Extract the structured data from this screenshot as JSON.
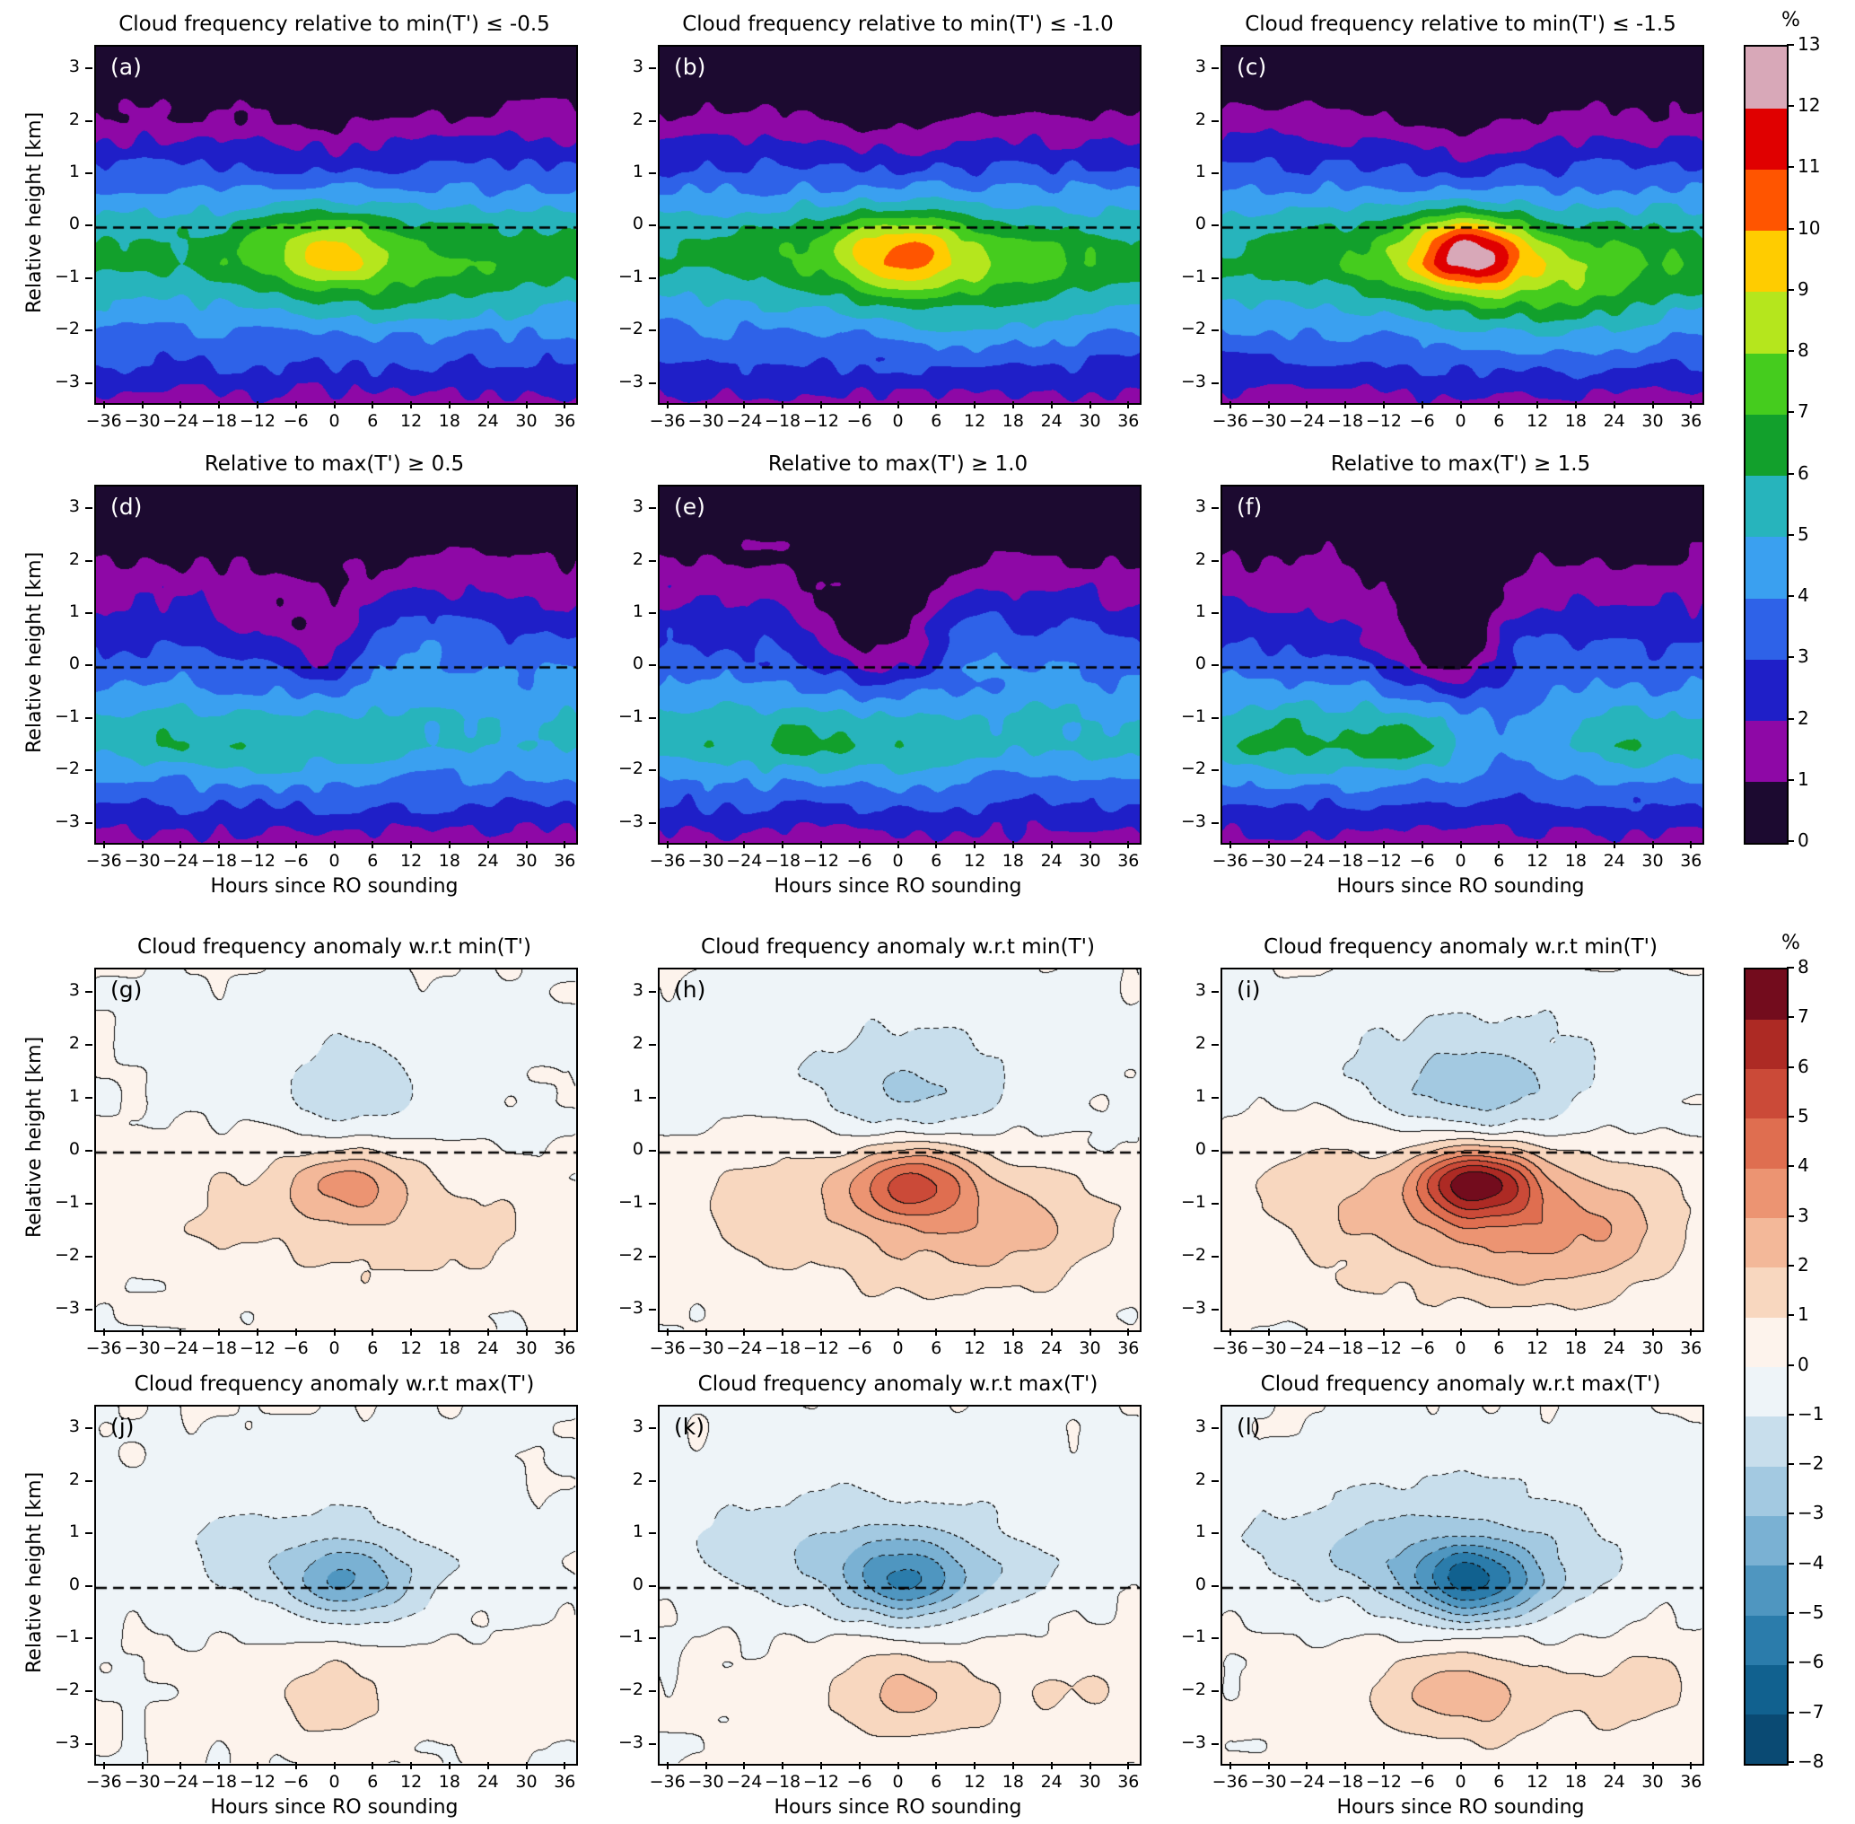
{
  "figure": {
    "xlabel": "Hours since RO sounding",
    "ylabel": "Relative height [km]",
    "x_ticks": [
      -36,
      -30,
      -24,
      -18,
      -12,
      -6,
      0,
      6,
      12,
      18,
      24,
      30,
      36
    ],
    "x_tick_labels": [
      "−36",
      "−30",
      "−24",
      "−18",
      "−12",
      "−6",
      "0",
      "6",
      "12",
      "18",
      "24",
      "30",
      "36"
    ],
    "y_ticks": [
      -3,
      -2,
      -1,
      0,
      1,
      2,
      3
    ],
    "y_tick_labels": [
      "−3",
      "−2",
      "−1",
      "0",
      "1",
      "2",
      "3"
    ]
  },
  "chart_data": {
    "type": "heatmap",
    "x_range": [
      -36,
      36
    ],
    "y_range": [
      -3.3,
      3.4
    ],
    "x_axis": "Hours since RO sounding",
    "y_axis": "Relative height [km]",
    "zero_height_line": "dashed horizontal line at relative height 0 in every panel",
    "backgrounds": {
      "B1": [
        [
          -3.45,
          1.5
        ],
        [
          -3.0,
          2.3
        ],
        [
          -2.5,
          3.1
        ],
        [
          -2.0,
          3.9
        ],
        [
          -1.5,
          4.8
        ],
        [
          -1.0,
          5.8
        ],
        [
          -0.7,
          6.2
        ],
        [
          -0.3,
          6.0
        ],
        [
          0.0,
          5.5
        ],
        [
          0.5,
          4.4
        ],
        [
          1.0,
          3.3
        ],
        [
          1.5,
          2.3
        ],
        [
          2.0,
          1.4
        ],
        [
          2.4,
          0.7
        ],
        [
          2.8,
          0.25
        ],
        [
          3.2,
          0.05
        ],
        [
          3.5,
          0.0
        ]
      ],
      "B2": [
        [
          -3.45,
          1.4
        ],
        [
          -3.0,
          2.2
        ],
        [
          -2.5,
          3.2
        ],
        [
          -2.0,
          4.2
        ],
        [
          -1.5,
          5.2
        ],
        [
          -1.0,
          5.0
        ],
        [
          -0.5,
          4.2
        ],
        [
          0.0,
          3.5
        ],
        [
          0.5,
          2.9
        ],
        [
          1.0,
          2.3
        ],
        [
          1.5,
          1.7
        ],
        [
          2.0,
          1.05
        ],
        [
          2.5,
          0.5
        ],
        [
          3.0,
          0.18
        ],
        [
          3.5,
          0.0
        ]
      ]
    },
    "panels": [
      {
        "id": "a",
        "label": "(a)",
        "title": "Cloud frequency relative to min(T') ≤ -0.5",
        "cmap": "freq",
        "bg": "B1",
        "seed": 11,
        "noise": 0.45,
        "gaussians": [
          {
            "t": 0,
            "h": -0.45,
            "st": 7,
            "sh": 0.55,
            "a": 2.4
          },
          {
            "t": 14,
            "h": -1.0,
            "st": 13,
            "sh": 0.8,
            "a": 1.0
          },
          {
            "t": -10,
            "h": -0.35,
            "st": 9,
            "sh": 0.7,
            "a": 0.7
          },
          {
            "t": 0,
            "h": 1.9,
            "st": 8,
            "sh": 0.7,
            "a": -0.5
          }
        ]
      },
      {
        "id": "b",
        "label": "(b)",
        "title": "Cloud frequency relative to min(T') ≤ -1.0",
        "cmap": "freq",
        "bg": "B1",
        "seed": 12,
        "noise": 0.45,
        "gaussians": [
          {
            "t": 1,
            "h": -0.5,
            "st": 6.5,
            "sh": 0.55,
            "a": 3.4
          },
          {
            "t": 14,
            "h": -1.0,
            "st": 13,
            "sh": 0.8,
            "a": 1.5
          },
          {
            "t": -10,
            "h": -0.35,
            "st": 9,
            "sh": 0.7,
            "a": 0.9
          },
          {
            "t": 0,
            "h": 1.9,
            "st": 8,
            "sh": 0.7,
            "a": -0.6
          }
        ]
      },
      {
        "id": "c",
        "label": "(c)",
        "title": "Cloud frequency relative to min(T') ≤ -1.5",
        "cmap": "freq",
        "bg": "B1",
        "seed": 13,
        "noise": 0.45,
        "gaussians": [
          {
            "t": 1,
            "h": -0.5,
            "st": 6,
            "sh": 0.5,
            "a": 5.2
          },
          {
            "t": 14,
            "h": -1.1,
            "st": 13,
            "sh": 0.8,
            "a": 2.2
          },
          {
            "t": -10,
            "h": -0.4,
            "st": 9,
            "sh": 0.7,
            "a": 1.0
          },
          {
            "t": 0,
            "h": 1.9,
            "st": 8,
            "sh": 0.7,
            "a": -0.7
          }
        ]
      },
      {
        "id": "d",
        "label": "(d)",
        "title": "Relative to max(T') ≥ 0.5",
        "cmap": "freq",
        "bg": "B2",
        "seed": 21,
        "noise": 0.45,
        "gaussians": [
          {
            "t": -2,
            "h": 0.9,
            "st": 9,
            "sh": 0.8,
            "a": -1.2
          },
          {
            "t": -2,
            "h": 0.25,
            "st": 4,
            "sh": 0.5,
            "a": -0.7
          },
          {
            "t": 10,
            "h": 0.7,
            "st": 6,
            "sh": 0.6,
            "a": 1.2
          },
          {
            "t": 22,
            "h": 0.3,
            "st": 9,
            "sh": 0.8,
            "a": 0.5
          },
          {
            "t": -12,
            "h": -1.5,
            "st": 8,
            "sh": 0.55,
            "a": 0.8
          },
          {
            "t": -28,
            "h": -1.4,
            "st": 6,
            "sh": 0.5,
            "a": 0.5
          },
          {
            "t": 5,
            "h": -1.7,
            "st": 6,
            "sh": 0.5,
            "a": 0.5
          }
        ]
      },
      {
        "id": "e",
        "label": "(e)",
        "title": "Relative to max(T') ≥ 1.0",
        "cmap": "freq",
        "bg": "B2",
        "seed": 22,
        "noise": 0.45,
        "gaussians": [
          {
            "t": -2,
            "h": 0.9,
            "st": 9,
            "sh": 0.8,
            "a": -1.7
          },
          {
            "t": -2,
            "h": 0.25,
            "st": 4.5,
            "sh": 0.5,
            "a": -1.1
          },
          {
            "t": 10,
            "h": 0.7,
            "st": 5.5,
            "sh": 0.55,
            "a": 1.1
          },
          {
            "t": 22,
            "h": 0.3,
            "st": 9,
            "sh": 0.8,
            "a": 0.4
          },
          {
            "t": -12,
            "h": -1.5,
            "st": 8,
            "sh": 0.55,
            "a": 0.9
          },
          {
            "t": -28,
            "h": -1.4,
            "st": 6,
            "sh": 0.5,
            "a": 0.7
          },
          {
            "t": 5,
            "h": -1.7,
            "st": 6,
            "sh": 0.5,
            "a": 0.5
          }
        ]
      },
      {
        "id": "f",
        "label": "(f)",
        "title": "Relative to max(T') ≥ 1.5",
        "cmap": "freq",
        "bg": "B2",
        "seed": 23,
        "noise": 0.45,
        "gaussians": [
          {
            "t": -2,
            "h": 0.9,
            "st": 9,
            "sh": 0.8,
            "a": -2.2
          },
          {
            "t": -2,
            "h": 0.25,
            "st": 4.5,
            "sh": 0.5,
            "a": -1.5
          },
          {
            "t": 10,
            "h": 0.7,
            "st": 5,
            "sh": 0.55,
            "a": 1.0
          },
          {
            "t": -12,
            "h": -1.5,
            "st": 8,
            "sh": 0.55,
            "a": 1.3
          },
          {
            "t": -30,
            "h": -1.4,
            "st": 6,
            "sh": 0.5,
            "a": 1.1
          },
          {
            "t": 6,
            "h": -1.3,
            "st": 8,
            "sh": 0.7,
            "a": -0.8
          },
          {
            "t": 26,
            "h": -1.6,
            "st": 7,
            "sh": 0.5,
            "a": 0.6
          }
        ]
      },
      {
        "id": "g",
        "label": "(g)",
        "title": "Cloud frequency anomaly w.r.t min(T')",
        "cmap": "anom",
        "bg": null,
        "seed": 31,
        "noise": 0.3,
        "gaussians": [
          {
            "t": 2,
            "h": -0.55,
            "st": 6.5,
            "sh": 0.5,
            "a": 2.6
          },
          {
            "t": 16,
            "h": -1.2,
            "st": 13,
            "sh": 0.8,
            "a": 1.2
          },
          {
            "t": -16,
            "h": -0.9,
            "st": 14,
            "sh": 0.9,
            "a": 1.0
          },
          {
            "t": 8,
            "h": -2.2,
            "st": 20,
            "sh": 0.8,
            "a": 0.5
          },
          {
            "t": 2,
            "h": 1.1,
            "st": 10,
            "sh": 0.7,
            "a": -1.4
          },
          {
            "t": 0,
            "h": 2.0,
            "st": 26,
            "sh": 1.0,
            "a": -0.4
          }
        ]
      },
      {
        "id": "h",
        "label": "(h)",
        "title": "Cloud frequency anomaly w.r.t min(T')",
        "cmap": "anom",
        "bg": null,
        "seed": 32,
        "noise": 0.3,
        "gaussians": [
          {
            "t": 2,
            "h": -0.55,
            "st": 6.5,
            "sh": 0.5,
            "a": 4.2
          },
          {
            "t": 16,
            "h": -1.2,
            "st": 13,
            "sh": 0.8,
            "a": 2.0
          },
          {
            "t": -16,
            "h": -0.9,
            "st": 14,
            "sh": 0.9,
            "a": 1.4
          },
          {
            "t": 8,
            "h": -2.2,
            "st": 20,
            "sh": 0.8,
            "a": 0.9
          },
          {
            "t": 2,
            "h": 1.1,
            "st": 10,
            "sh": 0.7,
            "a": -1.8
          },
          {
            "t": 0,
            "h": 2.0,
            "st": 26,
            "sh": 1.0,
            "a": -0.7
          }
        ]
      },
      {
        "id": "i",
        "label": "(i)",
        "title": "Cloud frequency anomaly w.r.t min(T')",
        "cmap": "anom",
        "bg": null,
        "seed": 33,
        "noise": 0.3,
        "gaussians": [
          {
            "t": 2,
            "h": -0.55,
            "st": 6.5,
            "sh": 0.5,
            "a": 6.0
          },
          {
            "t": 16,
            "h": -1.2,
            "st": 13,
            "sh": 0.8,
            "a": 2.8
          },
          {
            "t": -16,
            "h": -0.9,
            "st": 14,
            "sh": 0.9,
            "a": 1.7
          },
          {
            "t": 8,
            "h": -2.2,
            "st": 20,
            "sh": 0.8,
            "a": 1.1
          },
          {
            "t": 2,
            "h": 1.1,
            "st": 10,
            "sh": 0.7,
            "a": -2.2
          },
          {
            "t": 0,
            "h": 2.0,
            "st": 26,
            "sh": 1.0,
            "a": -0.9
          }
        ]
      },
      {
        "id": "j",
        "label": "(j)",
        "title": "Cloud frequency anomaly w.r.t max(T')",
        "cmap": "anom",
        "bg": null,
        "seed": 41,
        "noise": 0.3,
        "gaussians": [
          {
            "t": 1,
            "h": 0.1,
            "st": 7,
            "sh": 0.55,
            "a": -3.2
          },
          {
            "t": -14,
            "h": 0.6,
            "st": 14,
            "sh": 0.7,
            "a": -1.1
          },
          {
            "t": 14,
            "h": 0.3,
            "st": 10,
            "sh": 0.6,
            "a": -0.8
          },
          {
            "t": 0,
            "h": 1.7,
            "st": 25,
            "sh": 1.0,
            "a": -0.4
          },
          {
            "t": 0,
            "h": -2.0,
            "st": 8,
            "sh": 0.6,
            "a": 1.3
          },
          {
            "t": 8,
            "h": -2.3,
            "st": 25,
            "sh": 0.8,
            "a": 0.25
          },
          {
            "t": 28,
            "h": -1.8,
            "st": 6,
            "sh": 0.5,
            "a": 0.6
          }
        ]
      },
      {
        "id": "k",
        "label": "(k)",
        "title": "Cloud frequency anomaly w.r.t max(T')",
        "cmap": "anom",
        "bg": null,
        "seed": 42,
        "noise": 0.3,
        "gaussians": [
          {
            "t": 1,
            "h": 0.1,
            "st": 7,
            "sh": 0.55,
            "a": -3.8
          },
          {
            "t": -14,
            "h": 0.6,
            "st": 14,
            "sh": 0.7,
            "a": -1.7
          },
          {
            "t": 14,
            "h": 0.3,
            "st": 10,
            "sh": 0.6,
            "a": -1.2
          },
          {
            "t": 0,
            "h": 1.7,
            "st": 25,
            "sh": 1.0,
            "a": -0.7
          },
          {
            "t": 0,
            "h": -2.0,
            "st": 8,
            "sh": 0.6,
            "a": 1.6
          },
          {
            "t": 8,
            "h": -2.3,
            "st": 25,
            "sh": 0.8,
            "a": 0.7
          },
          {
            "t": 28,
            "h": -1.8,
            "st": 6,
            "sh": 0.5,
            "a": 0.8
          }
        ]
      },
      {
        "id": "l",
        "label": "(l)",
        "title": "Cloud frequency anomaly w.r.t max(T')",
        "cmap": "anom",
        "bg": null,
        "seed": 43,
        "noise": 0.3,
        "gaussians": [
          {
            "t": 1,
            "h": 0.1,
            "st": 7,
            "sh": 0.55,
            "a": -4.8
          },
          {
            "t": -14,
            "h": 0.6,
            "st": 14,
            "sh": 0.7,
            "a": -1.9
          },
          {
            "t": 14,
            "h": 0.3,
            "st": 10,
            "sh": 0.6,
            "a": -1.4
          },
          {
            "t": 0,
            "h": 1.7,
            "st": 25,
            "sh": 1.0,
            "a": -0.8
          },
          {
            "t": 0,
            "h": -2.0,
            "st": 8,
            "sh": 0.6,
            "a": 1.8
          },
          {
            "t": 8,
            "h": -2.3,
            "st": 25,
            "sh": 0.8,
            "a": 0.9
          },
          {
            "t": 28,
            "h": -1.8,
            "st": 6,
            "sh": 0.5,
            "a": 1.0
          }
        ]
      }
    ],
    "colorbars": [
      {
        "title": "%",
        "min": 0,
        "max": 13,
        "colors": [
          "#1c0a30",
          "#8e08a6",
          "#1f1fc8",
          "#2e62e8",
          "#3aa0f0",
          "#27b4bc",
          "#12a02c",
          "#45cc1e",
          "#b5e61d",
          "#ffcc00",
          "#ff5500",
          "#e00000",
          "#d8a8b8"
        ],
        "tick_labels": [
          "0",
          "1",
          "2",
          "3",
          "4",
          "5",
          "6",
          "7",
          "8",
          "9",
          "10",
          "11",
          "12",
          "13"
        ]
      },
      {
        "title": "%",
        "min": -8,
        "max": 8,
        "colors": [
          "#0a4a73",
          "#11618f",
          "#2b7cab",
          "#4f96c0",
          "#7ab1d3",
          "#a3c9e1",
          "#c8deec",
          "#eef4f8",
          "#fdf3ec",
          "#f8d7bf",
          "#f3b899",
          "#ec9472",
          "#df6e50",
          "#cb4a38",
          "#ad2a24",
          "#730c1d"
        ],
        "tick_labels": [
          "−8",
          "−7",
          "−6",
          "−5",
          "−4",
          "−3",
          "−2",
          "−1",
          "0",
          "1",
          "2",
          "3",
          "4",
          "5",
          "6",
          "7",
          "8"
        ]
      }
    ]
  }
}
